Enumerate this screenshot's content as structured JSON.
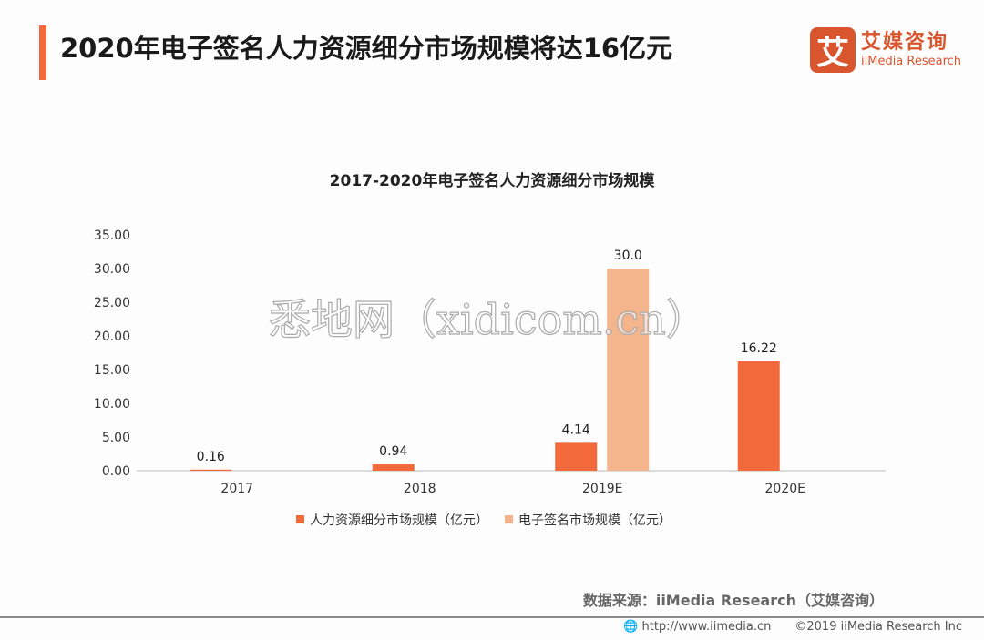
{
  "header": {
    "title": "2020年电子签名人力资源细分市场规模将达16亿元"
  },
  "logo": {
    "mark": "艾",
    "cn": "艾媒咨询",
    "en": "iiMedia Research"
  },
  "watermark": "悉地网（xidicom.cn）",
  "chart_data": {
    "type": "bar",
    "title": "2017-2020年电子签名人力资源细分市场规模",
    "categories": [
      "2017",
      "2018",
      "2019E",
      "2020E"
    ],
    "series": [
      {
        "name": "人力资源细分市场规模（亿元）",
        "color": "#f26a3b",
        "values": [
          0.16,
          0.94,
          4.14,
          16.22
        ],
        "labels": [
          "0.16",
          "0.94",
          "4.14",
          "16.22"
        ]
      },
      {
        "name": "电子签名市场规模（亿元）",
        "color": "#f4b48c",
        "values": [
          null,
          null,
          30.0,
          null
        ],
        "labels": [
          "",
          "",
          "30.0",
          ""
        ]
      }
    ],
    "yticks": [
      "0.00",
      "5.00",
      "10.00",
      "15.00",
      "20.00",
      "25.00",
      "30.00",
      "35.00"
    ],
    "ylim": [
      0,
      35
    ],
    "legend": "bottom",
    "grid": false
  },
  "source": "数据来源：iiMedia Research（艾媒咨询）",
  "footer": {
    "url": "http://www.iimedia.cn",
    "copyright": "©2019 iiMedia Research  Inc"
  }
}
